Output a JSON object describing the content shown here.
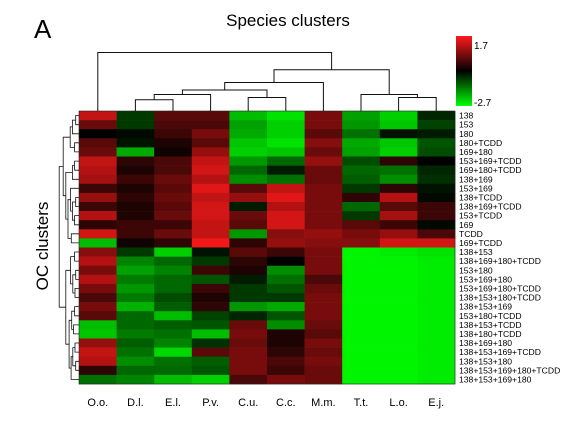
{
  "chart_data": {
    "type": "heatmap",
    "panel_label": "A",
    "title": "Species clusters",
    "ylabel": "OC clusters",
    "color_scale": {
      "min": -2.7,
      "max": 1.7,
      "min_label": "-2.7",
      "max_label": "1.7",
      "colors": {
        "high": "#ff1a1a",
        "mid": "#000000",
        "low": "#00ff00"
      }
    },
    "columns": [
      "O.o.",
      "D.l.",
      "E.l.",
      "P.v.",
      "C.u.",
      "C.c.",
      "M.m.",
      "T.t.",
      "L.o.",
      "E.j."
    ],
    "rows": [
      "138",
      "153",
      "180",
      "180+TCDD",
      "169+180",
      "153+169+TCDD",
      "169+180+TCDD",
      "138+169",
      "153+169",
      "138+TCDD",
      "138+169+TCDD",
      "153+TCDD",
      "169",
      "TCDD",
      "169+TCDD",
      "138+153",
      "138+169+180+TCDD",
      "153+180",
      "153+169+180",
      "153+169+180+TCDD",
      "138+153+180+TCDD",
      "138+153+169",
      "153+180+TCDD",
      "138+153+TCDD",
      "138+180+TCDD",
      "138+169+180",
      "138+153+169+TCDD",
      "138+153+180",
      "138+153+169+180+TCDD",
      "138+153+169+180"
    ],
    "values": [
      [
        1.3,
        -0.6,
        0.6,
        0.6,
        -2.0,
        -2.4,
        0.8,
        -1.7,
        -2.2,
        -0.4
      ],
      [
        0.7,
        -0.6,
        0.5,
        0.5,
        -1.7,
        -2.2,
        0.8,
        -1.6,
        -2.1,
        -0.7
      ],
      [
        0.0,
        -0.1,
        0.4,
        0.8,
        -1.8,
        -2.2,
        0.6,
        -1.2,
        -0.2,
        -0.3
      ],
      [
        0.6,
        -0.2,
        0.2,
        0.6,
        -2.1,
        -2.4,
        0.9,
        -1.8,
        -2.1,
        -0.9
      ],
      [
        0.7,
        -1.8,
        0.1,
        1.0,
        -2.2,
        -2.1,
        0.7,
        -1.7,
        -2.2,
        -0.8
      ],
      [
        1.3,
        0.3,
        0.5,
        1.3,
        -1.6,
        -1.1,
        1.0,
        -0.8,
        0.3,
        0.0
      ],
      [
        1.2,
        0.2,
        0.5,
        1.4,
        -1.1,
        -0.3,
        0.7,
        -1.1,
        -1.2,
        -0.4
      ],
      [
        1.1,
        0.4,
        0.7,
        1.2,
        -1.5,
        -1.2,
        0.7,
        -1.0,
        -1.5,
        -0.5
      ],
      [
        0.4,
        0.2,
        0.6,
        1.5,
        0.6,
        1.3,
        0.8,
        -0.6,
        0.3,
        -0.2
      ],
      [
        1.0,
        0.3,
        0.7,
        1.3,
        1.0,
        1.5,
        0.8,
        0.3,
        1.2,
        -0.1
      ],
      [
        0.4,
        0.2,
        0.6,
        1.4,
        -0.3,
        1.2,
        0.8,
        -1.1,
        0.6,
        0.4
      ],
      [
        1.2,
        0.2,
        0.7,
        1.4,
        0.7,
        1.4,
        0.8,
        -0.6,
        1.1,
        0.4
      ],
      [
        0.3,
        0.4,
        0.4,
        1.3,
        0.6,
        1.4,
        0.8,
        0.6,
        0.4,
        -0.1
      ],
      [
        1.4,
        0.4,
        0.7,
        1.3,
        -1.6,
        0.9,
        1.0,
        0.8,
        1.0,
        0.5
      ],
      [
        -2.0,
        0.1,
        0.3,
        1.6,
        0.3,
        1.0,
        0.9,
        0.9,
        1.4,
        1.4
      ],
      [
        0.9,
        -0.6,
        -2.2,
        -0.2,
        0.6,
        0.4,
        0.8,
        -2.6,
        -2.5,
        -2.4
      ],
      [
        1.2,
        -1.4,
        -1.1,
        -0.6,
        0.3,
        0.0,
        0.8,
        -2.6,
        -2.6,
        -2.5
      ],
      [
        0.8,
        -1.7,
        -1.4,
        0.4,
        0.2,
        -1.5,
        0.8,
        -2.6,
        -2.6,
        -2.5
      ],
      [
        1.2,
        -1.3,
        -1.1,
        -0.9,
        -0.3,
        -1.2,
        0.5,
        -2.6,
        -2.6,
        -2.5
      ],
      [
        0.8,
        -1.6,
        -1.1,
        0.4,
        -0.6,
        -0.9,
        0.7,
        -2.6,
        -2.6,
        -2.5
      ],
      [
        0.5,
        -1.3,
        -0.8,
        0.2,
        -0.6,
        -0.6,
        0.8,
        -2.6,
        -2.6,
        -2.5
      ],
      [
        0.8,
        -1.9,
        -1.0,
        0.3,
        -1.6,
        -1.8,
        0.8,
        -2.6,
        -2.6,
        -2.5
      ],
      [
        0.6,
        -1.1,
        -2.0,
        -0.7,
        -0.4,
        -0.9,
        0.8,
        -2.6,
        -2.6,
        -2.5
      ],
      [
        -2.0,
        -1.1,
        -1.0,
        -0.9,
        0.7,
        -1.5,
        0.7,
        -2.6,
        -2.6,
        -2.5
      ],
      [
        -2.1,
        -1.3,
        -1.2,
        -2.0,
        0.8,
        0.2,
        0.6,
        -2.6,
        -2.6,
        -2.5
      ],
      [
        1.0,
        -1.0,
        -1.4,
        -0.5,
        0.7,
        0.2,
        0.8,
        -2.6,
        -2.6,
        -2.5
      ],
      [
        1.3,
        -1.2,
        -2.3,
        0.6,
        0.8,
        0.3,
        0.7,
        -2.6,
        -2.6,
        -2.5
      ],
      [
        1.2,
        -1.5,
        -1.2,
        -1.0,
        0.8,
        0.5,
        0.8,
        -2.6,
        -2.6,
        -2.5
      ],
      [
        0.3,
        -1.1,
        -1.1,
        -0.9,
        0.8,
        0.4,
        0.7,
        -2.6,
        -2.6,
        -2.5
      ],
      [
        -1.2,
        -1.4,
        -2.0,
        -2.2,
        0.5,
        0.8,
        0.7,
        -2.6,
        -2.6,
        -2.5
      ]
    ]
  }
}
